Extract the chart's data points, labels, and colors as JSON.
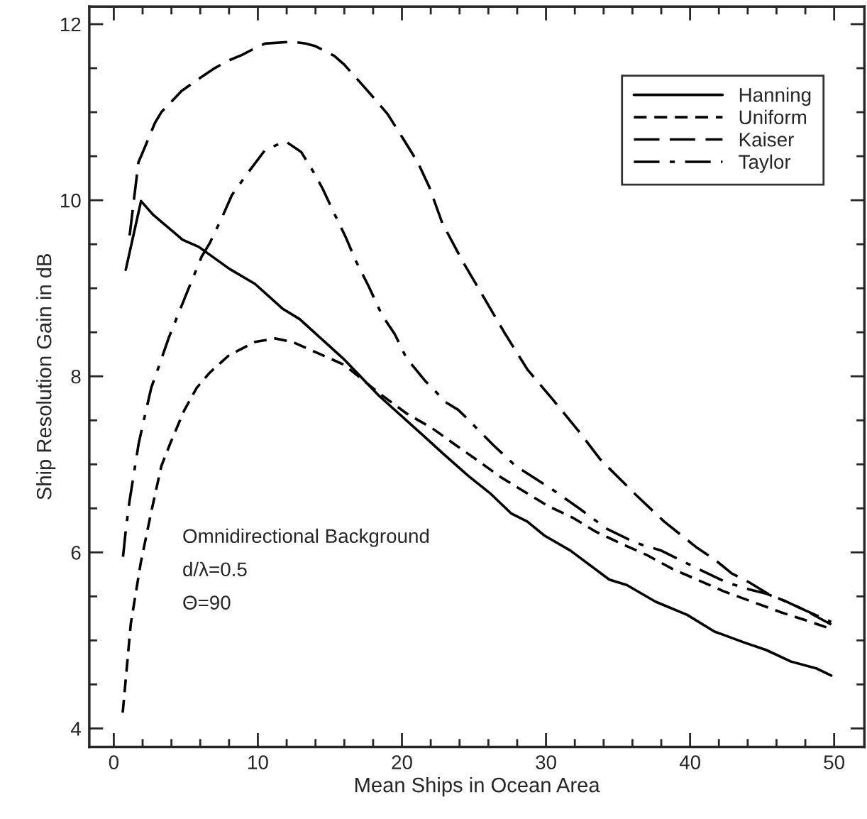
{
  "chart_data": {
    "type": "line",
    "xlabel": "Mean Ships in Ocean Area",
    "ylabel": "Ship Resolution Gain in dB",
    "xlim": [
      -1.7,
      52.1
    ],
    "ylim": [
      3.79,
      12.2
    ],
    "xticks": [
      0,
      {
        "value": 2,
        "label": null
      },
      {
        "value": 4,
        "label": null
      },
      {
        "value": 6,
        "label": null
      },
      {
        "value": 8,
        "label": null
      },
      10,
      {
        "value": 12,
        "label": null
      },
      {
        "value": 14,
        "label": null
      },
      {
        "value": 16,
        "label": null
      },
      {
        "value": 18,
        "label": null
      },
      20,
      {
        "value": 22,
        "label": null
      },
      {
        "value": 24,
        "label": null
      },
      {
        "value": 26,
        "label": null
      },
      {
        "value": 28,
        "label": null
      },
      30,
      {
        "value": 32,
        "label": null
      },
      {
        "value": 34,
        "label": null
      },
      {
        "value": 36,
        "label": null
      },
      {
        "value": 38,
        "label": null
      },
      40,
      {
        "value": 42,
        "label": null
      },
      {
        "value": 44,
        "label": null
      },
      {
        "value": 46,
        "label": null
      },
      {
        "value": 48,
        "label": null
      },
      50
    ],
    "yticks": [
      4,
      {
        "value": 4.5,
        "label": null
      },
      {
        "value": 5,
        "label": null
      },
      {
        "value": 5.5,
        "label": null
      },
      6,
      {
        "value": 6.5,
        "label": null
      },
      {
        "value": 7,
        "label": null
      },
      {
        "value": 7.5,
        "label": null
      },
      8,
      {
        "value": 8.5,
        "label": null
      },
      {
        "value": 9,
        "label": null
      },
      {
        "value": 9.5,
        "label": null
      },
      10,
      {
        "value": 10.5,
        "label": null
      },
      {
        "value": 11,
        "label": null
      },
      {
        "value": 11.5,
        "label": null
      },
      12
    ],
    "grid": false,
    "legend": "top right",
    "marker": "none",
    "annotations": [
      "Omnidirectional Background",
      "d/λ=0.5",
      "Θ=90"
    ],
    "series": [
      {
        "name": "Hanning",
        "color": "#000000",
        "line_style": "solid",
        "x": [
          0.83,
          1.89,
          2.76,
          4.78,
          5.9,
          8.03,
          9.8,
          11.7,
          12.9,
          16.0,
          18.4,
          21.6,
          22.8,
          24.6,
          26.2,
          27.6,
          28.7,
          29.9,
          31.7,
          34.4,
          35.6,
          37.6,
          39.8,
          41.7,
          43.7,
          45.3,
          47.0,
          48.8,
          49.8
        ],
        "values": [
          9.21,
          9.99,
          9.83,
          9.55,
          9.47,
          9.22,
          9.05,
          8.77,
          8.65,
          8.19,
          7.78,
          7.31,
          7.13,
          6.87,
          6.66,
          6.44,
          6.35,
          6.19,
          6.02,
          5.69,
          5.63,
          5.44,
          5.29,
          5.1,
          4.98,
          4.89,
          4.76,
          4.68,
          4.6
        ]
      },
      {
        "name": "Uniform",
        "color": "#000000",
        "line_style": "dashed",
        "x": [
          0.62,
          1.18,
          1.87,
          2.6,
          3.3,
          3.9,
          4.88,
          5.76,
          6.65,
          8.0,
          9.8,
          11.2,
          12.4,
          14.2,
          16.0,
          18.4,
          20.3,
          22.1,
          23.9,
          25.2,
          26.9,
          28.5,
          30.1,
          31.9,
          33.4,
          35.2,
          37.0,
          38.8,
          40.5,
          42.3,
          44.3,
          46.3,
          48.0,
          49.8
        ],
        "values": [
          4.18,
          5.19,
          5.88,
          6.46,
          6.98,
          7.23,
          7.61,
          7.87,
          8.04,
          8.24,
          8.39,
          8.43,
          8.39,
          8.26,
          8.13,
          7.81,
          7.58,
          7.41,
          7.2,
          7.05,
          6.85,
          6.69,
          6.53,
          6.39,
          6.24,
          6.1,
          5.97,
          5.81,
          5.69,
          5.56,
          5.44,
          5.32,
          5.23,
          5.13
        ]
      },
      {
        "name": "Kaiser",
        "color": "#000000",
        "line_style": "longdash",
        "x": [
          1.1,
          1.71,
          2.15,
          2.86,
          3.3,
          4.7,
          5.9,
          7.0,
          7.87,
          8.9,
          9.6,
          10.5,
          12.4,
          13.3,
          14.0,
          15.3,
          16.0,
          17.2,
          17.9,
          19.0,
          20.0,
          21.1,
          21.9,
          22.8,
          24.2,
          25.6,
          27.1,
          28.7,
          30.5,
          32.3,
          33.8,
          36.2,
          38.2,
          40.5,
          41.7,
          42.9,
          44.1,
          45.5,
          46.7,
          48.0,
          49.8
        ],
        "values": [
          9.6,
          10.43,
          10.6,
          10.88,
          11.0,
          11.24,
          11.38,
          11.5,
          11.58,
          11.65,
          11.71,
          11.78,
          11.8,
          11.78,
          11.75,
          11.64,
          11.54,
          11.32,
          11.19,
          10.98,
          10.72,
          10.43,
          10.15,
          9.74,
          9.31,
          8.92,
          8.5,
          8.08,
          7.73,
          7.37,
          7.05,
          6.66,
          6.35,
          6.05,
          5.92,
          5.76,
          5.66,
          5.52,
          5.44,
          5.34,
          5.18
        ]
      },
      {
        "name": "Taylor",
        "color": "#000000",
        "line_style": "dashdot",
        "x": [
          0.64,
          0.84,
          1.08,
          1.72,
          2.07,
          2.6,
          3.1,
          3.82,
          5.05,
          6.1,
          6.65,
          7.5,
          8.2,
          9.3,
          10.5,
          11.9,
          13.0,
          13.9,
          14.5,
          15.3,
          16.1,
          16.8,
          17.7,
          18.6,
          19.5,
          20.3,
          21.6,
          22.1,
          23.0,
          23.9,
          24.4,
          26.4,
          27.9,
          30.3,
          32.3,
          34.2,
          36.2,
          38.0,
          40.1,
          42.5,
          44.1,
          45.3,
          47.0,
          48.0,
          49.8
        ],
        "values": [
          5.95,
          6.26,
          6.57,
          7.23,
          7.49,
          7.87,
          8.1,
          8.44,
          8.94,
          9.36,
          9.51,
          9.8,
          10.06,
          10.31,
          10.57,
          10.67,
          10.55,
          10.31,
          10.13,
          9.85,
          9.58,
          9.31,
          9.02,
          8.7,
          8.48,
          8.21,
          7.95,
          7.87,
          7.71,
          7.62,
          7.54,
          7.21,
          6.98,
          6.73,
          6.5,
          6.27,
          6.11,
          6.02,
          5.85,
          5.66,
          5.58,
          5.53,
          5.42,
          5.34,
          5.21
        ]
      }
    ]
  }
}
